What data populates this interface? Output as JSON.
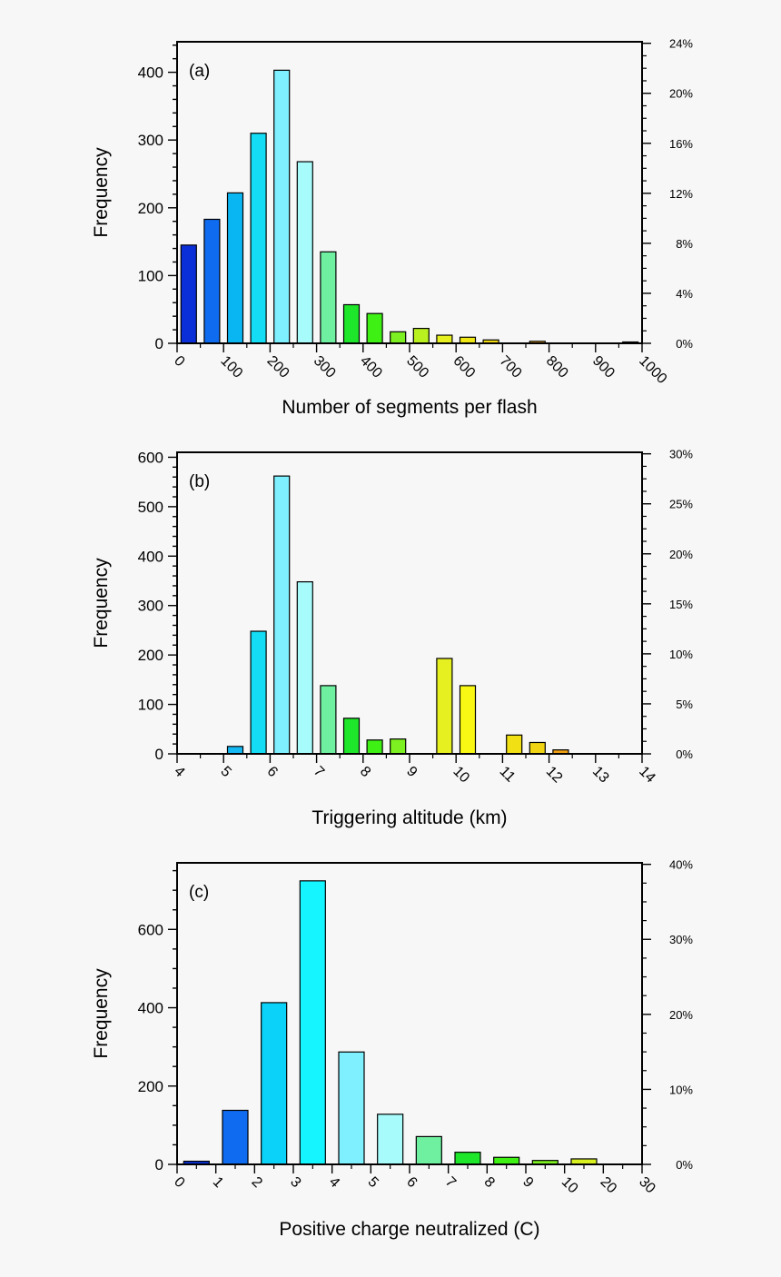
{
  "chart_data": [
    {
      "type": "bar",
      "panel_label": "(a)",
      "xlabel": "Number of segments per flash",
      "ylabel": "Frequency",
      "x_ticks": [
        "0",
        "100",
        "200",
        "300",
        "400",
        "500",
        "600",
        "700",
        "800",
        "900",
        "1000"
      ],
      "ylim": [
        0,
        445
      ],
      "y_ticks": [
        0,
        100,
        200,
        300,
        400
      ],
      "right_ticks": [
        "0%",
        "4%",
        "8%",
        "12%",
        "16%",
        "20%",
        "24%"
      ],
      "right_max_percent": 24,
      "bins": [
        {
          "x": 25,
          "value": 145,
          "color": "#0a2fd8"
        },
        {
          "x": 75,
          "value": 183,
          "color": "#0f6cf0"
        },
        {
          "x": 125,
          "value": 222,
          "color": "#0ab6f2"
        },
        {
          "x": 175,
          "value": 310,
          "color": "#14dcf5"
        },
        {
          "x": 225,
          "value": 403,
          "color": "#7ff0ff"
        },
        {
          "x": 275,
          "value": 268,
          "color": "#a8fbfb"
        },
        {
          "x": 325,
          "value": 135,
          "color": "#6ef0a0"
        },
        {
          "x": 375,
          "value": 57,
          "color": "#1ee62a"
        },
        {
          "x": 425,
          "value": 44,
          "color": "#3ef014"
        },
        {
          "x": 475,
          "value": 17,
          "color": "#7cf020"
        },
        {
          "x": 525,
          "value": 22,
          "color": "#b8f020"
        },
        {
          "x": 575,
          "value": 12,
          "color": "#e6f020"
        },
        {
          "x": 625,
          "value": 9,
          "color": "#f0e814"
        },
        {
          "x": 675,
          "value": 5,
          "color": "#f0d814"
        },
        {
          "x": 775,
          "value": 3,
          "color": "#f0a814"
        },
        {
          "x": 975,
          "value": 2,
          "color": "#e07014"
        }
      ]
    },
    {
      "type": "bar",
      "panel_label": "(b)",
      "xlabel": "Triggering altitude (km)",
      "ylabel": "Frequency",
      "x_ticks": [
        "4",
        "5",
        "6",
        "7",
        "8",
        "9",
        "10",
        "11",
        "12",
        "13",
        "14"
      ],
      "ylim": [
        0,
        610
      ],
      "y_ticks": [
        0,
        100,
        200,
        300,
        400,
        500,
        600
      ],
      "right_ticks": [
        "0%",
        "5%",
        "10%",
        "15%",
        "20%",
        "25%",
        "30%"
      ],
      "right_max_percent": 30,
      "bins": [
        {
          "x": 5.25,
          "value": 15,
          "color": "#14b8f2"
        },
        {
          "x": 5.75,
          "value": 248,
          "color": "#14dcf5"
        },
        {
          "x": 6.25,
          "value": 562,
          "color": "#7ff0ff"
        },
        {
          "x": 6.75,
          "value": 348,
          "color": "#a8fbfb"
        },
        {
          "x": 7.25,
          "value": 138,
          "color": "#6ef0a0"
        },
        {
          "x": 7.75,
          "value": 72,
          "color": "#1ee62a"
        },
        {
          "x": 8.25,
          "value": 28,
          "color": "#3ef014"
        },
        {
          "x": 8.75,
          "value": 30,
          "color": "#7cf020"
        },
        {
          "x": 9.75,
          "value": 193,
          "color": "#e6f020"
        },
        {
          "x": 10.25,
          "value": 138,
          "color": "#f8f814"
        },
        {
          "x": 11.25,
          "value": 38,
          "color": "#f0e014"
        },
        {
          "x": 11.75,
          "value": 23,
          "color": "#f0d414"
        },
        {
          "x": 12.25,
          "value": 8,
          "color": "#f0a014"
        }
      ]
    },
    {
      "type": "bar",
      "panel_label": "(c)",
      "xlabel": "Positive charge neutralized (C)",
      "ylabel": "Frequency",
      "x_ticks": [
        "0",
        "1",
        "2",
        "3",
        "4",
        "5",
        "6",
        "7",
        "8",
        "9",
        "10",
        "20",
        "30"
      ],
      "ylim": [
        0,
        770
      ],
      "y_ticks": [
        0,
        200,
        400,
        600
      ],
      "right_ticks": [
        "0%",
        "10%",
        "20%",
        "30%",
        "40%"
      ],
      "right_max_percent": 40,
      "bins": [
        {
          "x": "0–1",
          "value": 8,
          "color": "#0a2fd8"
        },
        {
          "x": "1–2",
          "value": 138,
          "color": "#0f6cf0"
        },
        {
          "x": "2–3",
          "value": 413,
          "color": "#0ad2f8"
        },
        {
          "x": "3–4",
          "value": 724,
          "color": "#14f5ff"
        },
        {
          "x": "4–5",
          "value": 287,
          "color": "#7ff0ff"
        },
        {
          "x": "5–6",
          "value": 128,
          "color": "#a8fbfb"
        },
        {
          "x": "6–7",
          "value": 71,
          "color": "#6ef0a0"
        },
        {
          "x": "7–8",
          "value": 31,
          "color": "#1ee62a"
        },
        {
          "x": "8–9",
          "value": 18,
          "color": "#3ef014"
        },
        {
          "x": "9–10",
          "value": 10,
          "color": "#7cf020"
        },
        {
          "x": "10–20",
          "value": 14,
          "color": "#d8f020"
        }
      ]
    }
  ]
}
